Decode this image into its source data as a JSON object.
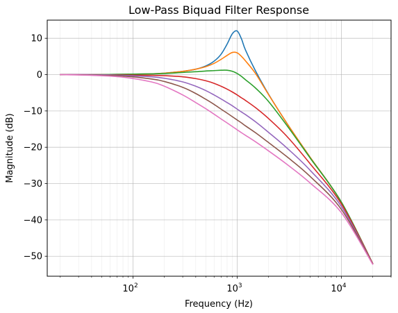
{
  "chart_data": {
    "type": "line",
    "title": "Low-Pass Biquad Filter Response",
    "xlabel": "Frequency (Hz)",
    "ylabel": "Magnitude (dB)",
    "x_scale": "log",
    "xlim": [
      15,
      30000
    ],
    "ylim": [
      -55.5,
      15
    ],
    "grid": true,
    "x_ticks": [
      {
        "value": 100,
        "base": "10",
        "exp": "2"
      },
      {
        "value": 1000,
        "base": "10",
        "exp": "3"
      },
      {
        "value": 10000,
        "base": "10",
        "exp": "4"
      }
    ],
    "y_ticks": [
      10,
      0,
      -10,
      -20,
      -30,
      -40,
      -50
    ],
    "x": [
      20,
      40,
      80,
      150,
      200,
      300,
      400,
      500,
      600,
      700,
      800,
      900,
      1000,
      1100,
      1200,
      1500,
      2000,
      3000,
      5000,
      10000,
      20000
    ],
    "series": [
      {
        "color": "#1f77b4",
        "values": [
          0.0,
          0.0,
          0.1,
          0.2,
          0.4,
          0.9,
          1.5,
          2.4,
          3.7,
          5.6,
          8.4,
          11.3,
          12.0,
          9.8,
          6.8,
          1.0,
          -5.4,
          -13.4,
          -22.7,
          -35.1,
          -52.0
        ]
      },
      {
        "color": "#ff7f0e",
        "values": [
          0.0,
          0.0,
          0.1,
          0.2,
          0.4,
          0.9,
          1.5,
          2.2,
          3.1,
          4.2,
          5.3,
          6.1,
          6.0,
          5.0,
          3.8,
          0.3,
          -5.5,
          -13.4,
          -22.7,
          -35.1,
          -52.0
        ]
      },
      {
        "color": "#2ca02c",
        "values": [
          0.0,
          0.0,
          0.1,
          0.2,
          0.3,
          0.6,
          0.8,
          1.0,
          1.1,
          1.2,
          1.2,
          0.9,
          0.3,
          -0.5,
          -1.4,
          -3.7,
          -7.4,
          -14.0,
          -22.9,
          -35.1,
          -52.0
        ]
      },
      {
        "color": "#d62728",
        "values": [
          0.0,
          0.0,
          -0.1,
          -0.2,
          -0.3,
          -0.6,
          -1.1,
          -1.7,
          -2.4,
          -3.2,
          -4.0,
          -4.8,
          -5.6,
          -6.4,
          -7.1,
          -9.1,
          -12.1,
          -17.0,
          -24.5,
          -35.6,
          -52.0
        ]
      },
      {
        "color": "#9467bd",
        "values": [
          0.0,
          0.0,
          -0.2,
          -0.6,
          -1.0,
          -2.0,
          -3.2,
          -4.4,
          -5.6,
          -6.7,
          -7.7,
          -8.6,
          -9.5,
          -10.3,
          -11.0,
          -13.0,
          -15.9,
          -20.2,
          -26.3,
          -36.3,
          -52.1
        ]
      },
      {
        "color": "#8c564b",
        "values": [
          0.0,
          -0.1,
          -0.4,
          -1.2,
          -1.9,
          -3.5,
          -5.2,
          -6.8,
          -8.2,
          -9.5,
          -10.6,
          -11.6,
          -12.5,
          -13.3,
          -14.1,
          -16.0,
          -18.7,
          -22.6,
          -28.0,
          -37.1,
          -52.1
        ]
      },
      {
        "color": "#e377c2",
        "values": [
          0.0,
          -0.2,
          -0.7,
          -2.0,
          -3.2,
          -5.6,
          -7.7,
          -9.4,
          -10.9,
          -12.2,
          -13.3,
          -14.3,
          -15.2,
          -16.0,
          -16.7,
          -18.5,
          -21.0,
          -24.7,
          -29.8,
          -38.0,
          -52.2
        ]
      }
    ]
  }
}
